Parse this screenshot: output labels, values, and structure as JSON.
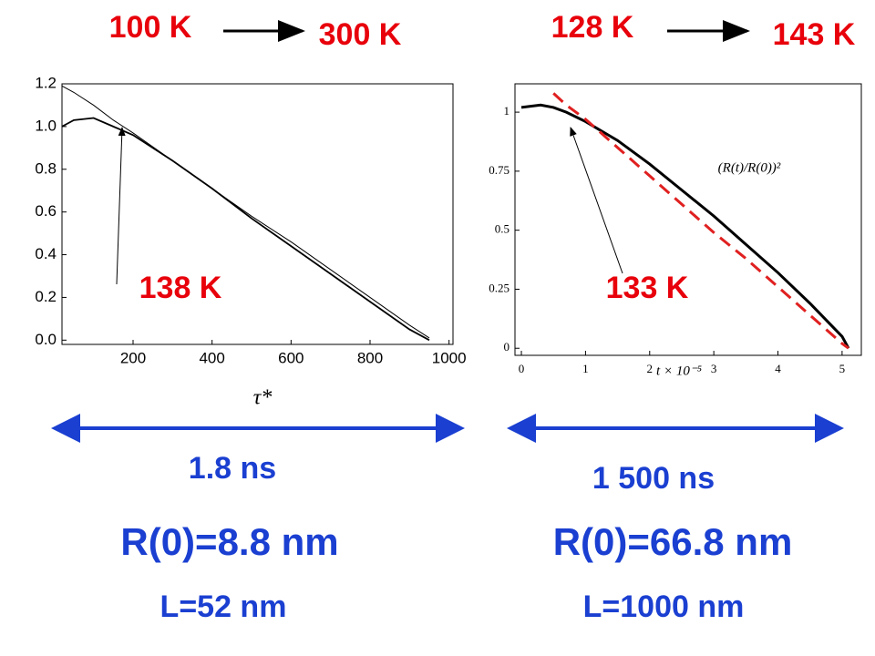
{
  "slide": {
    "left": {
      "from": "100 K",
      "to": "300 K",
      "time": "1.8 ns",
      "radius": "R(0)=8.8 nm",
      "size": "L=52 nm"
    },
    "right": {
      "from": "128 K",
      "to": "143 K",
      "time": "1 500 ns",
      "radius": "R(0)=66.8 nm",
      "size": "L=1000 nm"
    }
  },
  "chart_data": [
    {
      "type": "line",
      "xlabel": "τ*",
      "annotation": "138 K",
      "xlim": [
        20,
        1010
      ],
      "ylim": [
        -0.02,
        1.2
      ],
      "xticks": [
        200,
        400,
        600,
        800,
        1000
      ],
      "yticks": [
        {
          "value": 0,
          "label": "0.0"
        },
        0.2,
        0.4,
        0.6,
        0.8,
        {
          "value": 1,
          "label": "1.0"
        },
        1.2
      ],
      "x": [
        20,
        50,
        100,
        150,
        200,
        300,
        400,
        500,
        600,
        700,
        800,
        900,
        950
      ],
      "series": [
        {
          "color": "#000000",
          "dash": false,
          "values": [
            1.0,
            1.03,
            1.04,
            1.0,
            0.96,
            0.84,
            0.71,
            0.57,
            0.44,
            0.31,
            0.18,
            0.05,
            0.0
          ]
        },
        {
          "color": "#000000",
          "dash": false,
          "values": [
            1.19,
            1.16,
            1.1,
            1.03,
            0.97,
            0.84,
            0.71,
            0.58,
            0.46,
            0.33,
            0.2,
            0.07,
            0.01
          ]
        }
      ]
    },
    {
      "type": "line",
      "xlabel": "t × 10⁻⁵",
      "annotation": "133 K",
      "legend": "(R(t)/R(0))²",
      "xlim": [
        -0.1,
        5.3
      ],
      "ylim": [
        -0.03,
        1.12
      ],
      "xticks": [
        0,
        1,
        2,
        3,
        4,
        5
      ],
      "yticks": [
        0,
        0.25,
        0.5,
        0.75,
        1
      ],
      "x": [
        0,
        0.3,
        0.5,
        0.7,
        1,
        1.5,
        2,
        2.5,
        3,
        3.5,
        4,
        4.5,
        5,
        5.1
      ],
      "series": [
        {
          "color": "#000000",
          "dash": false,
          "values": [
            1.02,
            1.03,
            1.02,
            1.0,
            0.96,
            0.88,
            0.78,
            0.67,
            0.56,
            0.44,
            0.32,
            0.19,
            0.05,
            0.0
          ]
        },
        {
          "color": "#e02020",
          "dash": true,
          "values": [
            null,
            null,
            1.08,
            1.03,
            0.97,
            0.85,
            0.73,
            0.61,
            0.49,
            0.38,
            0.26,
            0.14,
            0.02,
            0.0
          ]
        }
      ]
    }
  ]
}
